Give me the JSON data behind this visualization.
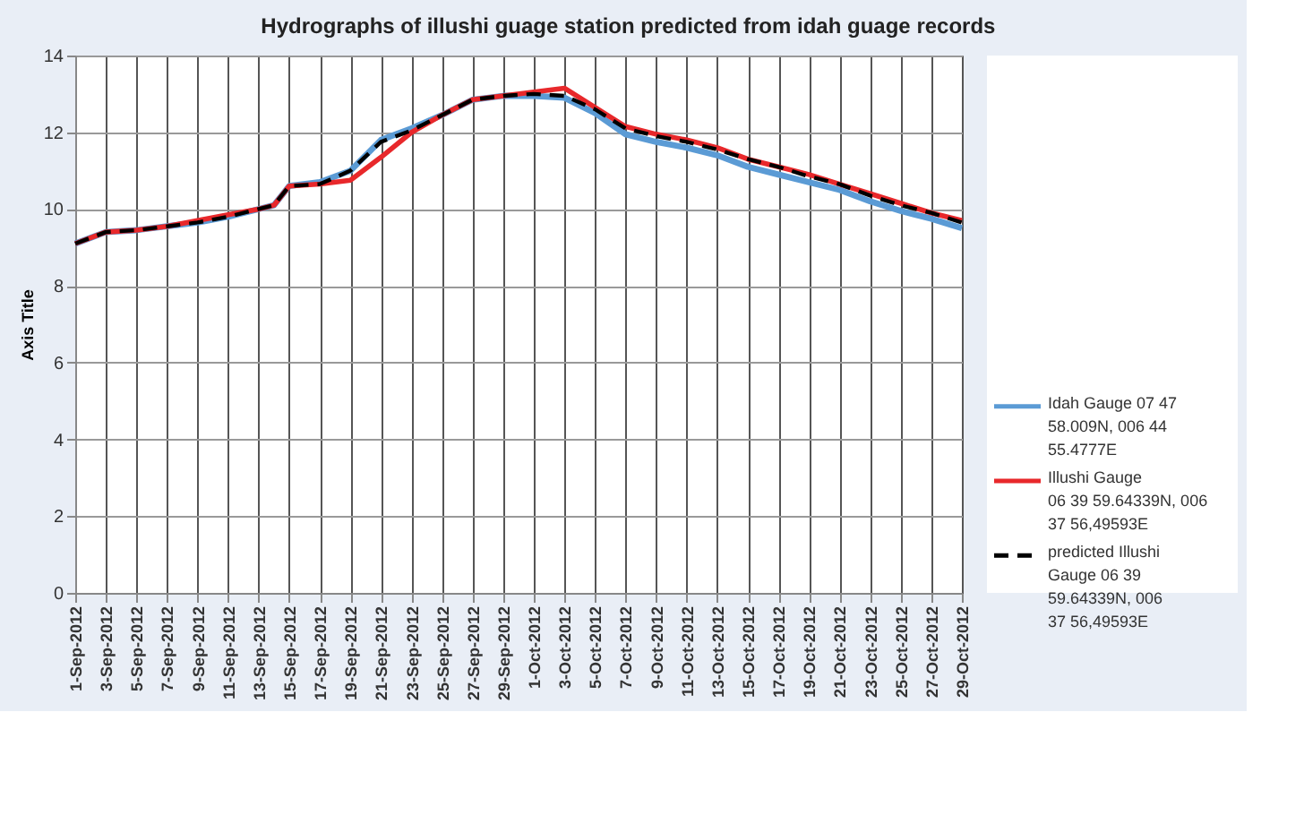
{
  "chart_data": {
    "type": "line",
    "title": "Hydrographs of illushi guage station predicted from idah guage records",
    "ylabel": "Axis Title",
    "x": [
      "2012-09-01",
      "2012-09-03",
      "2012-09-05",
      "2012-09-07",
      "2012-09-09",
      "2012-09-11",
      "2012-09-13",
      "2012-09-14",
      "2012-09-15",
      "2012-09-17",
      "2012-09-19",
      "2012-09-21",
      "2012-09-23",
      "2012-09-25",
      "2012-09-27",
      "2012-09-29",
      "2012-10-01",
      "2012-10-03",
      "2012-10-05",
      "2012-10-07",
      "2012-10-09",
      "2012-10-11",
      "2012-10-13",
      "2012-10-15",
      "2012-10-17",
      "2012-10-19",
      "2012-10-21",
      "2012-10-23",
      "2012-10-25",
      "2012-10-27",
      "2012-10-29"
    ],
    "series": [
      {
        "name": "Idah Gauge 07 47 58.009N, 006 44 55.4777E",
        "color": "#5b9bd5",
        "values": [
          9.1,
          9.4,
          9.45,
          9.55,
          9.65,
          9.8,
          10.0,
          10.1,
          10.6,
          10.7,
          11.0,
          11.8,
          12.1,
          12.45,
          12.85,
          12.95,
          12.95,
          12.9,
          12.5,
          11.95,
          11.75,
          11.6,
          11.4,
          11.1,
          10.9,
          10.7,
          10.5,
          10.2,
          9.95,
          9.75,
          9.5
        ]
      },
      {
        "name": "Illushi Gauge      06 39 59.64339N, 006 37 56,49593E",
        "color": "#e8282b",
        "values": [
          9.1,
          9.4,
          9.45,
          9.55,
          9.7,
          9.85,
          10.0,
          10.1,
          10.6,
          10.65,
          10.75,
          11.35,
          12.0,
          12.45,
          12.85,
          12.95,
          13.05,
          13.15,
          12.65,
          12.15,
          11.95,
          11.8,
          11.6,
          11.3,
          11.1,
          10.9,
          10.65,
          10.4,
          10.15,
          9.9,
          9.7
        ]
      },
      {
        "name": "predicted Illushi Gauge    06 39 59.64339N,     006 37 56,49593E",
        "color": "#000000",
        "line_style": "dashed",
        "values": [
          9.1,
          9.4,
          9.45,
          9.55,
          9.65,
          9.8,
          10.0,
          10.1,
          10.6,
          10.65,
          11.0,
          11.75,
          12.05,
          12.45,
          12.85,
          12.95,
          13.0,
          12.95,
          12.6,
          12.1,
          11.9,
          11.75,
          11.55,
          11.3,
          11.1,
          10.85,
          10.65,
          10.35,
          10.1,
          9.9,
          9.65
        ]
      }
    ],
    "xlim": [
      "2012-09-01",
      "2012-10-29"
    ],
    "xticks": [
      {
        "value": "2012-09-01",
        "label": "1-Sep-2012"
      },
      {
        "value": "2012-09-03",
        "label": "3-Sep-2012"
      },
      {
        "value": "2012-09-05",
        "label": "5-Sep-2012"
      },
      {
        "value": "2012-09-07",
        "label": "7-Sep-2012"
      },
      {
        "value": "2012-09-09",
        "label": "9-Sep-2012"
      },
      {
        "value": "2012-09-11",
        "label": "11-Sep-2012"
      },
      {
        "value": "2012-09-13",
        "label": "13-Sep-2012"
      },
      {
        "value": "2012-09-15",
        "label": "15-Sep-2012"
      },
      {
        "value": "2012-09-17",
        "label": "17-Sep-2012"
      },
      {
        "value": "2012-09-19",
        "label": "19-Sep-2012"
      },
      {
        "value": "2012-09-21",
        "label": "21-Sep-2012"
      },
      {
        "value": "2012-09-23",
        "label": "23-Sep-2012"
      },
      {
        "value": "2012-09-25",
        "label": "25-Sep-2012"
      },
      {
        "value": "2012-09-27",
        "label": "27-Sep-2012"
      },
      {
        "value": "2012-09-29",
        "label": "29-Sep-2012"
      },
      {
        "value": "2012-10-01",
        "label": "1-Oct-2012"
      },
      {
        "value": "2012-10-03",
        "label": "3-Oct-2012"
      },
      {
        "value": "2012-10-05",
        "label": "5-Oct-2012"
      },
      {
        "value": "2012-10-07",
        "label": "7-Oct-2012"
      },
      {
        "value": "2012-10-09",
        "label": "9-Oct-2012"
      },
      {
        "value": "2012-10-11",
        "label": "11-Oct-2012"
      },
      {
        "value": "2012-10-13",
        "label": "13-Oct-2012"
      },
      {
        "value": "2012-10-15",
        "label": "15-Oct-2012"
      },
      {
        "value": "2012-10-17",
        "label": "17-Oct-2012"
      },
      {
        "value": "2012-10-19",
        "label": "19-Oct-2012"
      },
      {
        "value": "2012-10-21",
        "label": "21-Oct-2012"
      },
      {
        "value": "2012-10-23",
        "label": "23-Oct-2012"
      },
      {
        "value": "2012-10-25",
        "label": "25-Oct-2012"
      },
      {
        "value": "2012-10-27",
        "label": "27-Oct-2012"
      },
      {
        "value": "2012-10-29",
        "label": "29-Oct-2012"
      }
    ],
    "ylim": [
      0,
      14
    ],
    "yticks": [
      0,
      2,
      4,
      6,
      8,
      10,
      12,
      14
    ],
    "grid": true,
    "legend": "right"
  }
}
